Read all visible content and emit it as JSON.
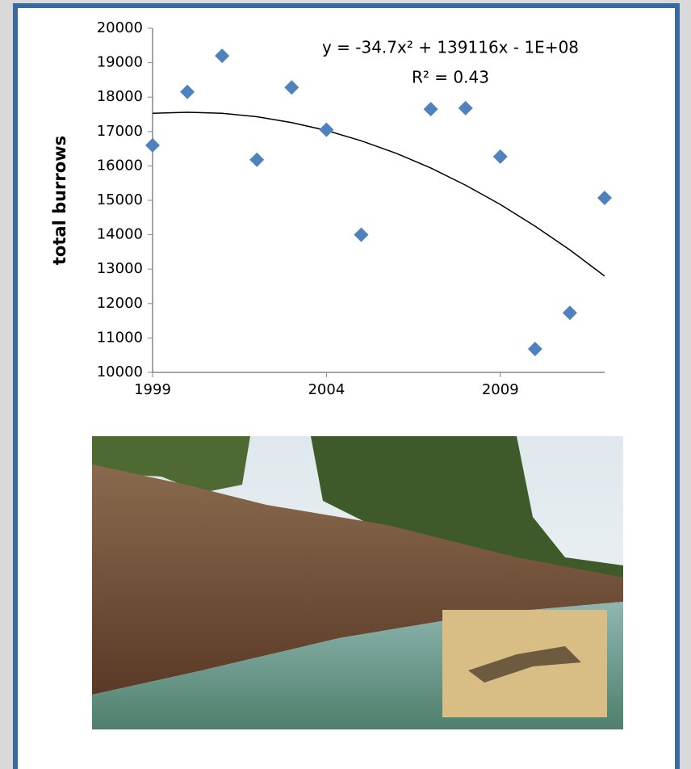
{
  "chart_data": {
    "type": "scatter",
    "x": [
      1999,
      2000,
      2001,
      2002,
      2003,
      2004,
      2005,
      2007,
      2008,
      2009,
      2010,
      2011,
      2012
    ],
    "values": [
      16600,
      18150,
      19200,
      16180,
      18280,
      17050,
      14000,
      17650,
      17680,
      16270,
      10680,
      11730,
      15070
    ],
    "color": "#4f81bd",
    "trendline": {
      "color": "#000000",
      "x": [
        1999,
        2000,
        2001,
        2002,
        2003,
        2004,
        2005,
        2006,
        2007,
        2008,
        2009,
        2010,
        2011,
        2012
      ],
      "values": [
        17530,
        17560,
        17530,
        17430,
        17260,
        17030,
        16730,
        16370,
        15940,
        15440,
        14880,
        14250,
        13560,
        12800
      ]
    },
    "annotations": [
      "y = -34.7x² + 139116x - 1E+08",
      "R² = 0.43"
    ],
    "y_label": "total burrows",
    "xlim": [
      1999,
      2012
    ],
    "xticks": [
      1999,
      2004,
      2009
    ],
    "ylim": [
      10000,
      20000
    ],
    "yticks": [
      10000,
      11000,
      12000,
      13000,
      14000,
      15000,
      16000,
      17000,
      18000,
      19000,
      20000
    ],
    "grid": false
  }
}
